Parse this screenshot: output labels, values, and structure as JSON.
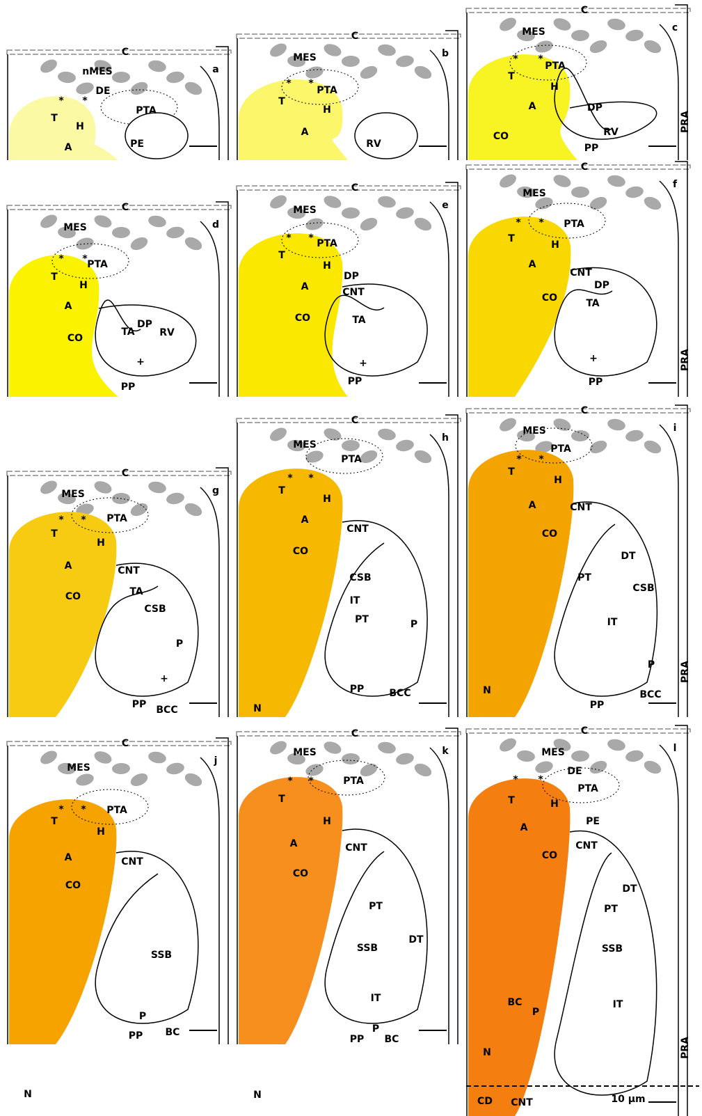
{
  "panels": [
    {
      "letter": "a",
      "labels": [
        "C",
        "nMES",
        "DE",
        "PTA",
        "T",
        "H",
        "A",
        "PE",
        "*",
        "*"
      ]
    },
    {
      "letter": "b",
      "labels": [
        "C",
        "MES",
        "PTA",
        "T",
        "H",
        "A",
        "RV",
        "*",
        "*"
      ]
    },
    {
      "letter": "c",
      "labels": [
        "C",
        "MES",
        "PTA",
        "T",
        "H",
        "A",
        "DP",
        "RV",
        "CO",
        "PP",
        "PRA",
        "*",
        "*"
      ]
    },
    {
      "letter": "d",
      "labels": [
        "C",
        "MES",
        "PTA",
        "T",
        "H",
        "A",
        "CO",
        "TA",
        "DP",
        "RV",
        "+",
        "PP",
        "*",
        "*"
      ]
    },
    {
      "letter": "e",
      "labels": [
        "C",
        "MES",
        "PTA",
        "T",
        "H",
        "A",
        "DP",
        "CNT",
        "CO",
        "TA",
        "+",
        "PP",
        "*",
        "*"
      ]
    },
    {
      "letter": "f",
      "labels": [
        "C",
        "MES",
        "PTA",
        "T",
        "H",
        "A",
        "CNT",
        "DP",
        "CO",
        "TA",
        "+",
        "PP",
        "PRA",
        "*",
        "*"
      ]
    },
    {
      "letter": "g",
      "labels": [
        "C",
        "MES",
        "PTA",
        "T",
        "H",
        "A",
        "CNT",
        "TA",
        "CO",
        "CSB",
        "P",
        "+",
        "PP",
        "BCC",
        "*",
        "*"
      ]
    },
    {
      "letter": "h",
      "labels": [
        "C",
        "MES",
        "PTA",
        "T",
        "H",
        "A",
        "CNT",
        "CO",
        "CSB",
        "IT",
        "PT",
        "P",
        "PP",
        "BCC",
        "N",
        "*",
        "*"
      ]
    },
    {
      "letter": "i",
      "labels": [
        "C",
        "MES",
        "PTA",
        "T",
        "H",
        "A",
        "CNT",
        "CO",
        "DT",
        "PT",
        "CSB",
        "IT",
        "P",
        "PP",
        "BCC",
        "N",
        "PRA",
        "*",
        "*"
      ]
    },
    {
      "letter": "j",
      "labels": [
        "C",
        "MES",
        "PTA",
        "T",
        "H",
        "A",
        "CNT",
        "CO",
        "SSB",
        "P",
        "PP",
        "BC",
        "N",
        "*",
        "*"
      ]
    },
    {
      "letter": "k",
      "labels": [
        "C",
        "MES",
        "PTA",
        "T",
        "H",
        "A",
        "CNT",
        "CO",
        "PT",
        "DT",
        "SSB",
        "IT",
        "P",
        "PP",
        "BC",
        "N",
        "*",
        "*"
      ]
    },
    {
      "letter": "l",
      "labels": [
        "C",
        "MES",
        "DE",
        "PTA",
        "T",
        "H",
        "PE",
        "A",
        "CNT",
        "CO",
        "DT",
        "PT",
        "SSB",
        "IT",
        "P",
        "BC",
        "N",
        "PRA",
        "CD",
        "CNT",
        "10 µm",
        "*",
        "*"
      ]
    }
  ]
}
